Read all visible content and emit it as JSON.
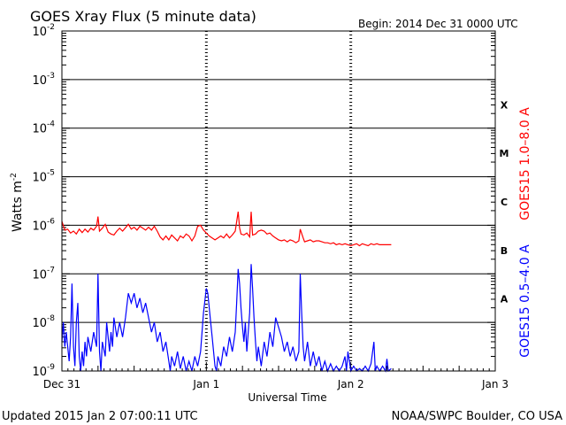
{
  "chart_data": {
    "type": "line",
    "title": "GOES Xray Flux (5 minute data)",
    "begin_label": "Begin:  2014 Dec 31 0000 UTC",
    "xlabel": "Universal Time",
    "ylabel_base": "Watts m",
    "ylabel_exp": "-2",
    "y_scale": "log",
    "ylim": [
      1e-09,
      0.01
    ],
    "xlim": [
      0,
      3
    ],
    "x_unit": "days since 2014 Dec 31 0000 UTC",
    "grid": "horizontal lines at each decade; dotted vertical markers at day boundaries",
    "x_ticks": [
      {
        "value": 0,
        "label": "Dec 31"
      },
      {
        "value": 1,
        "label": "Jan 1"
      },
      {
        "value": 2,
        "label": "Jan 2"
      },
      {
        "value": 3,
        "label": "Jan 3"
      }
    ],
    "y_ticks": [
      {
        "exp": -2,
        "base": "10",
        "sup": "-2"
      },
      {
        "exp": -3,
        "base": "10",
        "sup": "-3"
      },
      {
        "exp": -4,
        "base": "10",
        "sup": "-4"
      },
      {
        "exp": -5,
        "base": "10",
        "sup": "-5"
      },
      {
        "exp": -6,
        "base": "10",
        "sup": "-6"
      },
      {
        "exp": -7,
        "base": "10",
        "sup": "-7"
      },
      {
        "exp": -8,
        "base": "10",
        "sup": "-8"
      },
      {
        "exp": -9,
        "base": "10",
        "sup": "-9"
      }
    ],
    "flare_classes": [
      {
        "label": "X",
        "exp": -3.5
      },
      {
        "label": "M",
        "exp": -4.5
      },
      {
        "label": "C",
        "exp": -5.5
      },
      {
        "label": "B",
        "exp": -6.5
      },
      {
        "label": "A",
        "exp": -7.5
      }
    ],
    "series": [
      {
        "name": "GOES15 1.0–8.0 A",
        "color": "#ff0000",
        "points": [
          [
            0.0,
            -5.92
          ],
          [
            0.02,
            -6.1
          ],
          [
            0.04,
            -6.08
          ],
          [
            0.06,
            -6.16
          ],
          [
            0.08,
            -6.12
          ],
          [
            0.1,
            -6.18
          ],
          [
            0.12,
            -6.08
          ],
          [
            0.14,
            -6.15
          ],
          [
            0.16,
            -6.08
          ],
          [
            0.18,
            -6.14
          ],
          [
            0.2,
            -6.06
          ],
          [
            0.22,
            -6.1
          ],
          [
            0.24,
            -6.02
          ],
          [
            0.25,
            -5.82
          ],
          [
            0.26,
            -6.12
          ],
          [
            0.28,
            -6.06
          ],
          [
            0.3,
            -5.98
          ],
          [
            0.32,
            -6.14
          ],
          [
            0.34,
            -6.18
          ],
          [
            0.36,
            -6.2
          ],
          [
            0.38,
            -6.12
          ],
          [
            0.4,
            -6.06
          ],
          [
            0.42,
            -6.12
          ],
          [
            0.44,
            -6.05
          ],
          [
            0.46,
            -5.98
          ],
          [
            0.48,
            -6.08
          ],
          [
            0.5,
            -6.04
          ],
          [
            0.52,
            -6.1
          ],
          [
            0.54,
            -6.02
          ],
          [
            0.56,
            -6.06
          ],
          [
            0.58,
            -6.1
          ],
          [
            0.6,
            -6.04
          ],
          [
            0.62,
            -6.1
          ],
          [
            0.64,
            -6.02
          ],
          [
            0.66,
            -6.12
          ],
          [
            0.68,
            -6.24
          ],
          [
            0.7,
            -6.3
          ],
          [
            0.72,
            -6.22
          ],
          [
            0.74,
            -6.3
          ],
          [
            0.76,
            -6.2
          ],
          [
            0.78,
            -6.26
          ],
          [
            0.8,
            -6.32
          ],
          [
            0.82,
            -6.22
          ],
          [
            0.84,
            -6.26
          ],
          [
            0.86,
            -6.18
          ],
          [
            0.88,
            -6.22
          ],
          [
            0.9,
            -6.32
          ],
          [
            0.92,
            -6.22
          ],
          [
            0.94,
            -6.02
          ],
          [
            0.96,
            -6.0
          ],
          [
            0.98,
            -6.1
          ],
          [
            1.0,
            -6.16
          ],
          [
            1.02,
            -6.22
          ],
          [
            1.04,
            -6.26
          ],
          [
            1.06,
            -6.3
          ],
          [
            1.08,
            -6.26
          ],
          [
            1.1,
            -6.22
          ],
          [
            1.12,
            -6.26
          ],
          [
            1.14,
            -6.18
          ],
          [
            1.16,
            -6.26
          ],
          [
            1.18,
            -6.2
          ],
          [
            1.2,
            -6.12
          ],
          [
            1.22,
            -5.72
          ],
          [
            1.23,
            -6.05
          ],
          [
            1.24,
            -6.18
          ],
          [
            1.26,
            -6.2
          ],
          [
            1.28,
            -6.16
          ],
          [
            1.3,
            -6.24
          ],
          [
            1.31,
            -5.72
          ],
          [
            1.32,
            -6.2
          ],
          [
            1.34,
            -6.18
          ],
          [
            1.36,
            -6.12
          ],
          [
            1.38,
            -6.1
          ],
          [
            1.4,
            -6.12
          ],
          [
            1.42,
            -6.18
          ],
          [
            1.44,
            -6.16
          ],
          [
            1.46,
            -6.22
          ],
          [
            1.48,
            -6.26
          ],
          [
            1.5,
            -6.3
          ],
          [
            1.52,
            -6.32
          ],
          [
            1.54,
            -6.3
          ],
          [
            1.56,
            -6.34
          ],
          [
            1.58,
            -6.3
          ],
          [
            1.6,
            -6.32
          ],
          [
            1.62,
            -6.36
          ],
          [
            1.64,
            -6.32
          ],
          [
            1.65,
            -6.08
          ],
          [
            1.67,
            -6.26
          ],
          [
            1.68,
            -6.34
          ],
          [
            1.7,
            -6.32
          ],
          [
            1.72,
            -6.3
          ],
          [
            1.74,
            -6.34
          ],
          [
            1.76,
            -6.32
          ],
          [
            1.78,
            -6.32
          ],
          [
            1.8,
            -6.34
          ],
          [
            1.82,
            -6.36
          ],
          [
            1.84,
            -6.36
          ],
          [
            1.86,
            -6.38
          ],
          [
            1.88,
            -6.36
          ],
          [
            1.9,
            -6.4
          ],
          [
            1.92,
            -6.38
          ],
          [
            1.94,
            -6.4
          ],
          [
            1.96,
            -6.38
          ],
          [
            1.98,
            -6.4
          ],
          [
            2.0,
            -6.42
          ],
          [
            2.02,
            -6.4
          ],
          [
            2.04,
            -6.38
          ],
          [
            2.06,
            -6.42
          ],
          [
            2.08,
            -6.38
          ],
          [
            2.1,
            -6.4
          ],
          [
            2.12,
            -6.42
          ],
          [
            2.14,
            -6.38
          ],
          [
            2.16,
            -6.4
          ],
          [
            2.18,
            -6.38
          ],
          [
            2.2,
            -6.4
          ],
          [
            2.22,
            -6.4
          ],
          [
            2.24,
            -6.4
          ],
          [
            2.26,
            -6.4
          ],
          [
            2.28,
            -6.4
          ]
        ]
      },
      {
        "name": "GOES15 0.5–4.0 A",
        "color": "#0000ff",
        "points": [
          [
            0.0,
            -8.4
          ],
          [
            0.01,
            -8.0
          ],
          [
            0.02,
            -8.5
          ],
          [
            0.03,
            -8.2
          ],
          [
            0.05,
            -8.8
          ],
          [
            0.06,
            -8.3
          ],
          [
            0.07,
            -7.2
          ],
          [
            0.08,
            -8.5
          ],
          [
            0.09,
            -8.9
          ],
          [
            0.1,
            -8.0
          ],
          [
            0.11,
            -7.6
          ],
          [
            0.12,
            -8.7
          ],
          [
            0.13,
            -9.0
          ],
          [
            0.14,
            -8.6
          ],
          [
            0.15,
            -8.9
          ],
          [
            0.16,
            -8.4
          ],
          [
            0.17,
            -8.7
          ],
          [
            0.18,
            -8.3
          ],
          [
            0.2,
            -8.6
          ],
          [
            0.22,
            -8.2
          ],
          [
            0.24,
            -8.5
          ],
          [
            0.25,
            -7.0
          ],
          [
            0.26,
            -8.6
          ],
          [
            0.27,
            -9.0
          ],
          [
            0.28,
            -8.4
          ],
          [
            0.3,
            -8.7
          ],
          [
            0.31,
            -8.0
          ],
          [
            0.33,
            -8.6
          ],
          [
            0.34,
            -8.2
          ],
          [
            0.35,
            -8.5
          ],
          [
            0.36,
            -7.9
          ],
          [
            0.38,
            -8.3
          ],
          [
            0.4,
            -8.0
          ],
          [
            0.42,
            -8.3
          ],
          [
            0.44,
            -7.9
          ],
          [
            0.46,
            -7.4
          ],
          [
            0.48,
            -7.6
          ],
          [
            0.5,
            -7.4
          ],
          [
            0.52,
            -7.7
          ],
          [
            0.54,
            -7.5
          ],
          [
            0.56,
            -7.8
          ],
          [
            0.58,
            -7.6
          ],
          [
            0.6,
            -7.9
          ],
          [
            0.62,
            -8.2
          ],
          [
            0.64,
            -8.0
          ],
          [
            0.66,
            -8.4
          ],
          [
            0.68,
            -8.2
          ],
          [
            0.7,
            -8.6
          ],
          [
            0.72,
            -8.4
          ],
          [
            0.74,
            -8.8
          ],
          [
            0.75,
            -9.0
          ],
          [
            0.76,
            -8.7
          ],
          [
            0.78,
            -8.9
          ],
          [
            0.8,
            -8.6
          ],
          [
            0.82,
            -8.95
          ],
          [
            0.84,
            -8.7
          ],
          [
            0.86,
            -9.0
          ],
          [
            0.88,
            -8.8
          ],
          [
            0.9,
            -9.0
          ],
          [
            0.92,
            -8.7
          ],
          [
            0.94,
            -8.9
          ],
          [
            0.96,
            -8.6
          ],
          [
            0.98,
            -7.8
          ],
          [
            1.0,
            -7.3
          ],
          [
            1.01,
            -7.4
          ],
          [
            1.02,
            -7.7
          ],
          [
            1.03,
            -8.0
          ],
          [
            1.04,
            -8.3
          ],
          [
            1.05,
            -8.6
          ],
          [
            1.06,
            -8.9
          ],
          [
            1.07,
            -9.0
          ],
          [
            1.08,
            -8.7
          ],
          [
            1.1,
            -8.9
          ],
          [
            1.12,
            -8.5
          ],
          [
            1.14,
            -8.7
          ],
          [
            1.16,
            -8.3
          ],
          [
            1.18,
            -8.6
          ],
          [
            1.2,
            -8.2
          ],
          [
            1.21,
            -7.6
          ],
          [
            1.22,
            -6.9
          ],
          [
            1.23,
            -7.2
          ],
          [
            1.24,
            -7.7
          ],
          [
            1.25,
            -8.1
          ],
          [
            1.26,
            -8.4
          ],
          [
            1.27,
            -8.0
          ],
          [
            1.28,
            -8.6
          ],
          [
            1.29,
            -8.2
          ],
          [
            1.3,
            -7.8
          ],
          [
            1.31,
            -6.8
          ],
          [
            1.32,
            -7.3
          ],
          [
            1.33,
            -7.9
          ],
          [
            1.34,
            -8.4
          ],
          [
            1.35,
            -8.8
          ],
          [
            1.36,
            -8.5
          ],
          [
            1.38,
            -8.9
          ],
          [
            1.4,
            -8.4
          ],
          [
            1.42,
            -8.7
          ],
          [
            1.44,
            -8.2
          ],
          [
            1.46,
            -8.5
          ],
          [
            1.48,
            -7.9
          ],
          [
            1.5,
            -8.1
          ],
          [
            1.52,
            -8.3
          ],
          [
            1.54,
            -8.6
          ],
          [
            1.56,
            -8.4
          ],
          [
            1.58,
            -8.7
          ],
          [
            1.6,
            -8.5
          ],
          [
            1.62,
            -8.8
          ],
          [
            1.64,
            -8.6
          ],
          [
            1.65,
            -7.0
          ],
          [
            1.66,
            -7.8
          ],
          [
            1.67,
            -8.5
          ],
          [
            1.68,
            -8.8
          ],
          [
            1.7,
            -8.4
          ],
          [
            1.72,
            -8.9
          ],
          [
            1.74,
            -8.6
          ],
          [
            1.76,
            -8.9
          ],
          [
            1.78,
            -8.7
          ],
          [
            1.8,
            -9.0
          ],
          [
            1.82,
            -8.8
          ],
          [
            1.84,
            -9.0
          ],
          [
            1.86,
            -8.85
          ],
          [
            1.88,
            -9.0
          ],
          [
            1.9,
            -8.9
          ],
          [
            1.92,
            -9.0
          ],
          [
            1.94,
            -8.9
          ],
          [
            1.96,
            -8.7
          ],
          [
            1.97,
            -9.0
          ],
          [
            1.98,
            -8.6
          ],
          [
            2.0,
            -9.0
          ],
          [
            2.02,
            -8.9
          ],
          [
            2.04,
            -9.0
          ],
          [
            2.06,
            -8.95
          ],
          [
            2.08,
            -9.0
          ],
          [
            2.1,
            -8.9
          ],
          [
            2.12,
            -9.0
          ],
          [
            2.14,
            -8.85
          ],
          [
            2.16,
            -8.4
          ],
          [
            2.17,
            -9.0
          ],
          [
            2.18,
            -8.9
          ],
          [
            2.2,
            -9.0
          ],
          [
            2.22,
            -8.9
          ],
          [
            2.24,
            -9.0
          ],
          [
            2.25,
            -8.75
          ],
          [
            2.26,
            -9.0
          ],
          [
            2.28,
            -8.95
          ]
        ]
      }
    ]
  },
  "footer": {
    "updated": "Updated 2015 Jan  2 07:00:11 UTC",
    "credit": "NOAA/SWPC Boulder, CO USA"
  }
}
